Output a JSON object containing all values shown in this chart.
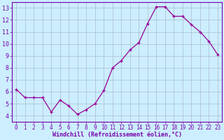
{
  "x": [
    0,
    1,
    2,
    3,
    4,
    5,
    6,
    7,
    8,
    9,
    10,
    11,
    12,
    13,
    14,
    15,
    16,
    17,
    18,
    19,
    20,
    21,
    22,
    23
  ],
  "y": [
    6.2,
    5.5,
    5.5,
    5.5,
    4.3,
    5.3,
    4.8,
    4.1,
    4.5,
    5.0,
    6.1,
    8.0,
    8.6,
    9.5,
    10.1,
    11.7,
    13.1,
    13.1,
    12.3,
    12.3,
    11.6,
    11.0,
    10.2,
    9.1
  ],
  "line_color": "#990099",
  "marker": "+",
  "bg_color": "#cceeff",
  "grid_color": "#aabbcc",
  "xlabel": "Windchill (Refroidissement éolien,°C)",
  "xlim": [
    -0.5,
    23.5
  ],
  "ylim": [
    3.5,
    13.5
  ],
  "yticks": [
    4,
    5,
    6,
    7,
    8,
    9,
    10,
    11,
    12,
    13
  ],
  "xticks": [
    0,
    1,
    2,
    3,
    4,
    5,
    6,
    7,
    8,
    9,
    10,
    11,
    12,
    13,
    14,
    15,
    16,
    17,
    18,
    19,
    20,
    21,
    22,
    23
  ],
  "xtick_labels": [
    "0",
    "1",
    "2",
    "3",
    "4",
    "5",
    "6",
    "7",
    "8",
    "9",
    "10",
    "11",
    "12",
    "13",
    "14",
    "15",
    "16",
    "17",
    "18",
    "19",
    "20",
    "21",
    "22",
    "23"
  ],
  "spine_color": "#7700aa",
  "tick_color": "#7700aa",
  "label_color": "#7700aa",
  "tick_fontsize": 5.5,
  "xlabel_fontsize": 6.0,
  "ytick_fontsize": 6.0
}
